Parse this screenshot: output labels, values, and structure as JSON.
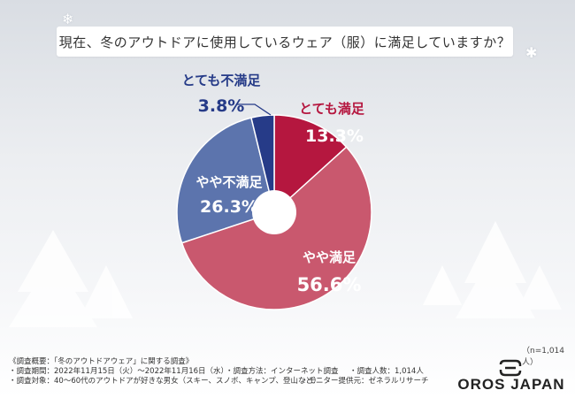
{
  "title": "現在、冬のアウトドアに使用しているウェア（服）に満足していますか？",
  "chart_data": {
    "type": "pie",
    "donut": true,
    "categories": [
      "とても満足",
      "やや満足",
      "やや不満足",
      "とても不満足"
    ],
    "values": [
      13.3,
      56.6,
      26.3,
      3.8
    ],
    "labels": [
      "13.3%",
      "56.6%",
      "26.3%",
      "3.8%"
    ],
    "colors": [
      "#b5173f",
      "#c9586e",
      "#5c74ad",
      "#263b88"
    ],
    "label_colors": [
      "#ffffff",
      "#ffffff",
      "#ffffff",
      "#263b88"
    ],
    "start": "top, clockwise"
  },
  "sample_size": "（n=1,014人）",
  "notes": {
    "line1": "《調査概要：「冬のアウトドアウェア」に関する調査》",
    "period": "・調査期間：2022年11月15日（火）～2022年11月16日（水）",
    "method": "・調査方法：インターネット調査",
    "count": "・調査人数：1,014人",
    "target": "・調査対象：40～60代のアウトドアが好きな男女（スキー、スノボ、キャンプ、登山など）",
    "provider": "・モニター提供元：ゼネラルリサーチ"
  },
  "logo": {
    "text": "OROS JAPAN"
  }
}
